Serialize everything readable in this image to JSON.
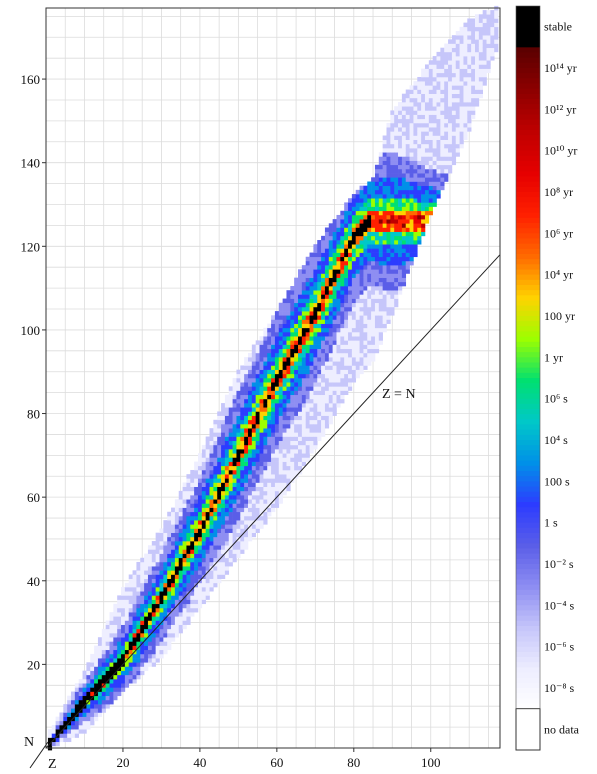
{
  "chart_data": {
    "type": "heatmap",
    "xlabel": "Z",
    "ylabel": "N",
    "xlim": [
      0,
      118
    ],
    "ylim": [
      0,
      177
    ],
    "x_ticks": [
      20,
      40,
      60,
      80,
      100
    ],
    "y_ticks": [
      20,
      40,
      60,
      80,
      100,
      120,
      140,
      160
    ],
    "grid": true,
    "annotation": "Z = N",
    "reference_line": {
      "label": "Z = N",
      "points": [
        [
          0,
          0
        ],
        [
          118,
          118
        ]
      ]
    },
    "colorbar": {
      "position": "right",
      "scale_order": "top-to-bottom",
      "levels": [
        {
          "label": "stable",
          "color": "#000000"
        },
        {
          "label": "10¹⁴ yr",
          "color": "#5c0000"
        },
        {
          "label": "10¹² yr",
          "color": "#8e0000"
        },
        {
          "label": "10¹⁰ yr",
          "color": "#c00000"
        },
        {
          "label": "10⁸ yr",
          "color": "#e60000"
        },
        {
          "label": "10⁶ yr",
          "color": "#ff2000"
        },
        {
          "label": "10⁴ yr",
          "color": "#ff6a00"
        },
        {
          "label": "100 yr",
          "color": "#ffd200"
        },
        {
          "label": "1 yr",
          "color": "#9cff00"
        },
        {
          "label": "10⁶ s",
          "color": "#00e070"
        },
        {
          "label": "10⁴ s",
          "color": "#00c8c8"
        },
        {
          "label": "100 s",
          "color": "#0090e8"
        },
        {
          "label": "1 s",
          "color": "#2c3cff"
        },
        {
          "label": "10⁻² s",
          "color": "#5a5ee8"
        },
        {
          "label": "10⁻⁴ s",
          "color": "#8e8ef2"
        },
        {
          "label": "10⁻⁶ s",
          "color": "#c6c6fa"
        },
        {
          "label": "10⁻⁸ s",
          "color": "#eeeeff"
        },
        {
          "label": "no data",
          "color": "#ffffff"
        }
      ]
    },
    "stability_line": {
      "description_points_Z_N": [
        [
          0,
          0
        ],
        [
          10,
          11
        ],
        [
          20,
          21
        ],
        [
          30,
          36
        ],
        [
          40,
          52
        ],
        [
          50,
          70
        ],
        [
          60,
          88
        ],
        [
          70,
          104
        ],
        [
          80,
          122
        ],
        [
          84,
          126
        ]
      ]
    },
    "nuclide_band_edges": {
      "points_Z": [
        0,
        10,
        20,
        30,
        40,
        50,
        60,
        70,
        80,
        85,
        90,
        100,
        110,
        118
      ],
      "n_lower": [
        0,
        4,
        14,
        22,
        34,
        46,
        58,
        72,
        88,
        93,
        104,
        128,
        148,
        170
      ],
      "n_upper": [
        2,
        18,
        38,
        52,
        70,
        90,
        104,
        120,
        132,
        136,
        152,
        164,
        174,
        177
      ]
    }
  }
}
